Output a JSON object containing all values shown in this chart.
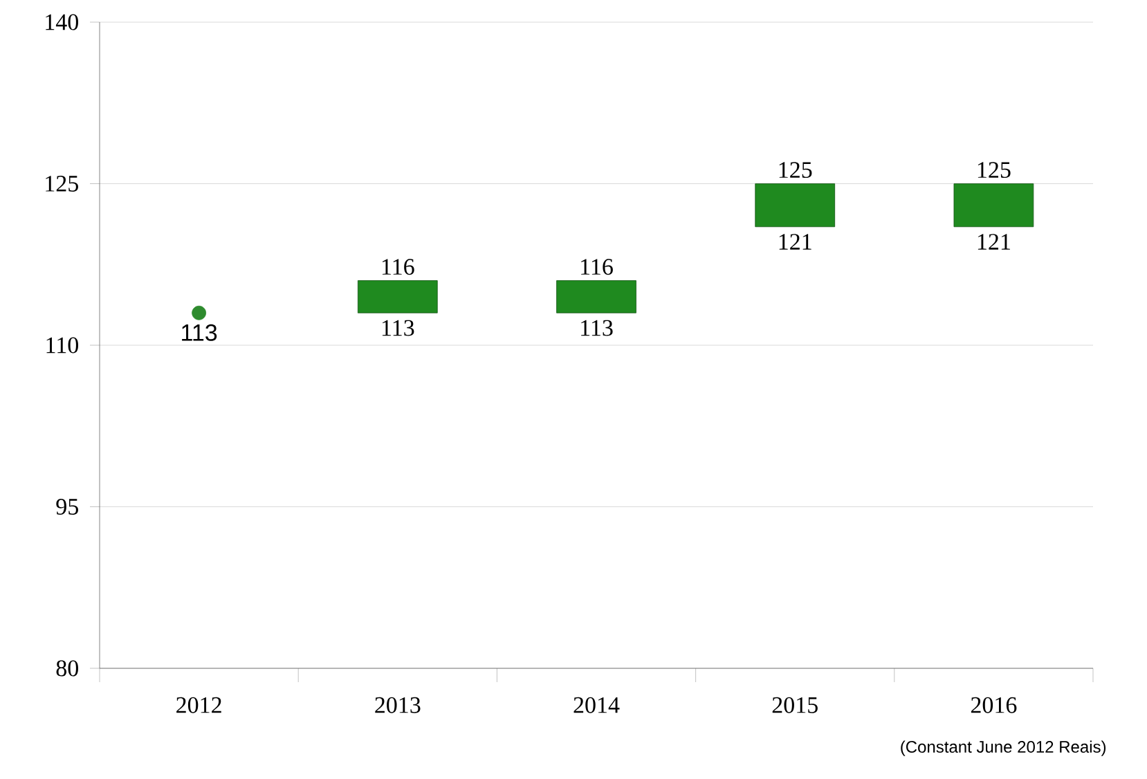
{
  "chart_data": {
    "type": "bar",
    "categories": [
      "2012",
      "2013",
      "2014",
      "2015",
      "2016"
    ],
    "series": [
      {
        "type": "scatter",
        "values": [
          113,
          null,
          null,
          null,
          null
        ],
        "color": "#2e8b2e",
        "marker": "circle"
      },
      {
        "base": [
          null,
          113,
          113,
          121,
          121
        ],
        "values": [
          null,
          3,
          3,
          4,
          4
        ],
        "color": "#1f8a1f"
      }
    ],
    "ylim": [
      80,
      140
    ],
    "yticks": [
      80,
      95,
      110,
      125,
      140
    ],
    "grid": "y",
    "annotations": [
      {
        "text": "113",
        "x": "2012",
        "y": 113
      },
      {
        "text": "116",
        "x": "2013",
        "y": 116
      },
      {
        "text": "113",
        "x": "2013",
        "y": 113
      },
      {
        "text": "116",
        "x": "2014",
        "y": 116
      },
      {
        "text": "113",
        "x": "2014",
        "y": 113
      },
      {
        "text": "125",
        "x": "2015",
        "y": 125
      },
      {
        "text": "121",
        "x": "2015",
        "y": 121
      },
      {
        "text": "125",
        "x": "2016",
        "y": 125
      },
      {
        "text": "121",
        "x": "2016",
        "y": 121
      },
      "(Constant  June 2012 Reais)"
    ]
  }
}
